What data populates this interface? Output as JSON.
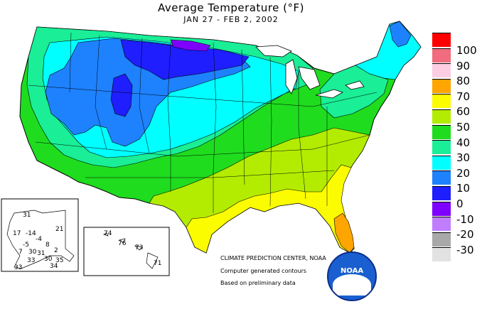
{
  "title": "Average Temperature (°F)",
  "subtitle": "JAN 27 - FEB  2, 2002",
  "credits": {
    "org": "CLIMATE PREDICTION CENTER, NOAA",
    "line2": "Computer generated contours",
    "line3": "Based on preliminary data"
  },
  "noaa_label": "NOAA",
  "legend": [
    {
      "label": "100",
      "color": "#ff0000"
    },
    {
      "label": "90",
      "color": "#f06c7e"
    },
    {
      "label": "80",
      "color": "#fdcde2"
    },
    {
      "label": "70",
      "color": "#ffa500"
    },
    {
      "label": "60",
      "color": "#fcfc00"
    },
    {
      "label": "50",
      "color": "#b3ec00"
    },
    {
      "label": "40",
      "color": "#1fdc1f"
    },
    {
      "label": "30",
      "color": "#1aee96"
    },
    {
      "label": "20",
      "color": "#00ffff"
    },
    {
      "label": "10",
      "color": "#1e82ff"
    },
    {
      "label": "0",
      "color": "#1e1eff"
    },
    {
      "label": "-10",
      "color": "#7e00ff"
    },
    {
      "label": "-20",
      "color": "#c07eff"
    },
    {
      "label": "-30",
      "color": "#a8a8a8"
    },
    {
      "label": "",
      "color": "#e2e2e2"
    }
  ],
  "alaska_values": [
    "31",
    "17",
    "-14",
    "21",
    "-4",
    "8",
    "-5",
    "2",
    "7",
    "30",
    "31",
    "33",
    "30",
    "34",
    "35",
    "33"
  ],
  "hawaii_values": [
    "74",
    "76",
    "73",
    "71"
  ]
}
